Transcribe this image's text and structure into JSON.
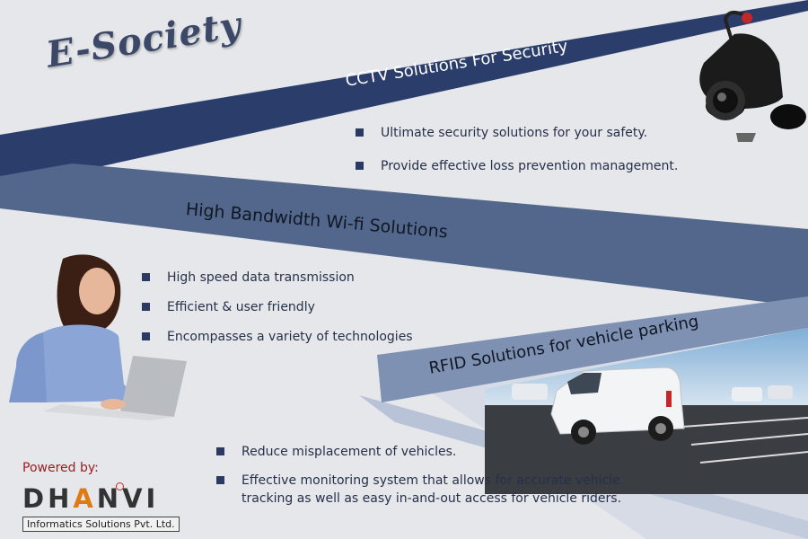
{
  "title": "E-Society",
  "sections": {
    "cctv": {
      "heading": "CCTV Solutions For Security",
      "items": [
        "Ultimate security solutions for your safety.",
        "Provide effective loss prevention management."
      ]
    },
    "wifi": {
      "heading": "High Bandwidth  Wi-fi Solutions",
      "items": [
        "High speed data transmission",
        "Efficient & user friendly",
        "Encompasses a variety of technologies"
      ]
    },
    "rfid": {
      "heading": "RFID Solutions for vehicle parking",
      "items": [
        "Reduce misplacement of vehicles.",
        "Effective monitoring system that allows for accurate vehicle tracking as well as easy in-and-out access for vehicle riders."
      ]
    }
  },
  "footer": {
    "powered_by": "Powered by:",
    "logo_part1": "DH",
    "logo_part2": "A",
    "logo_part3": "NVI",
    "logo_tagline": "Informatics Solutions Pvt. Ltd."
  },
  "colors": {
    "background": "#e6e7ea",
    "band_dark": "#2b3d6b",
    "band_mid": "#4f6487",
    "band_light": "#b8c3d7",
    "bullet": "#2a3a63",
    "accent_red": "#9b1f22",
    "accent_orange": "#e07a12"
  },
  "icons": [
    "cctv-camera-image",
    "woman-laptop-image",
    "parking-van-image"
  ]
}
